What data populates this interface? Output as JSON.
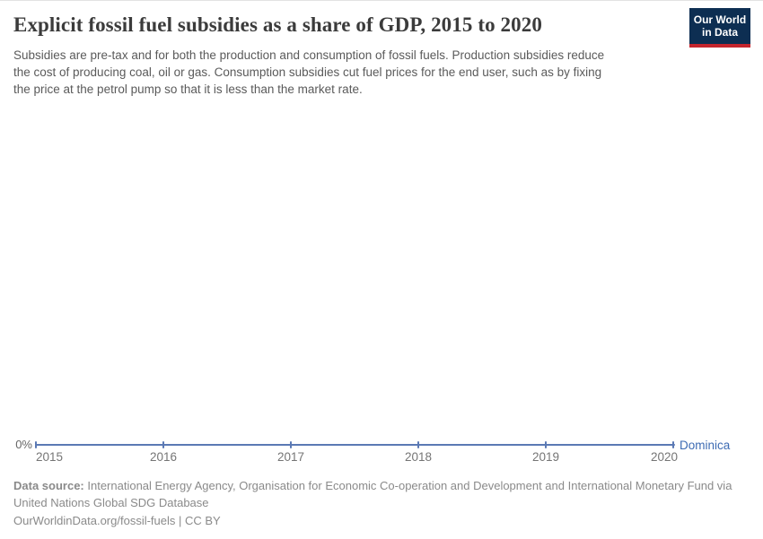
{
  "header": {
    "title": "Explicit fossil fuel subsidies as a share of GDP, 2015 to 2020",
    "subtitle_lines": [
      "Subsidies are pre-tax and for both the production and consumption of fossil fuels. Production subsidies reduce",
      "the cost of producing coal, oil or gas. Consumption subsidies cut fuel prices for the end user, such as by fixing",
      "the price at the petrol pump so that it is less than the market rate."
    ],
    "logo": {
      "line1": "Our World",
      "line2": "in Data",
      "bg_color": "#0d2e52",
      "bar_color": "#c4252d"
    }
  },
  "chart_data": {
    "type": "line",
    "title": "Explicit fossil fuel subsidies as a share of GDP, 2015 to 2020",
    "x": [
      2015,
      2016,
      2017,
      2018,
      2019,
      2020
    ],
    "x_tick_labels": [
      "2015",
      "2016",
      "2017",
      "2018",
      "2019",
      "2020"
    ],
    "series": [
      {
        "name": "Dominica",
        "values": [
          0,
          0,
          0,
          0,
          0,
          0
        ],
        "line_color": "#5b79b4",
        "label_color": "#3d6bb3"
      }
    ],
    "unit": "% of GDP",
    "y_axis": {
      "zero_label": "0%",
      "min": 0
    },
    "grid": false,
    "legend_position": "right-of-line-end"
  },
  "footer": {
    "datasource_label": "Data source:",
    "datasource_text": " International Energy Agency, Organisation for Economic Co-operation and Development and International Monetary Fund via United Nations Global SDG Database",
    "license": "OurWorldinData.org/fossil-fuels | CC BY"
  }
}
